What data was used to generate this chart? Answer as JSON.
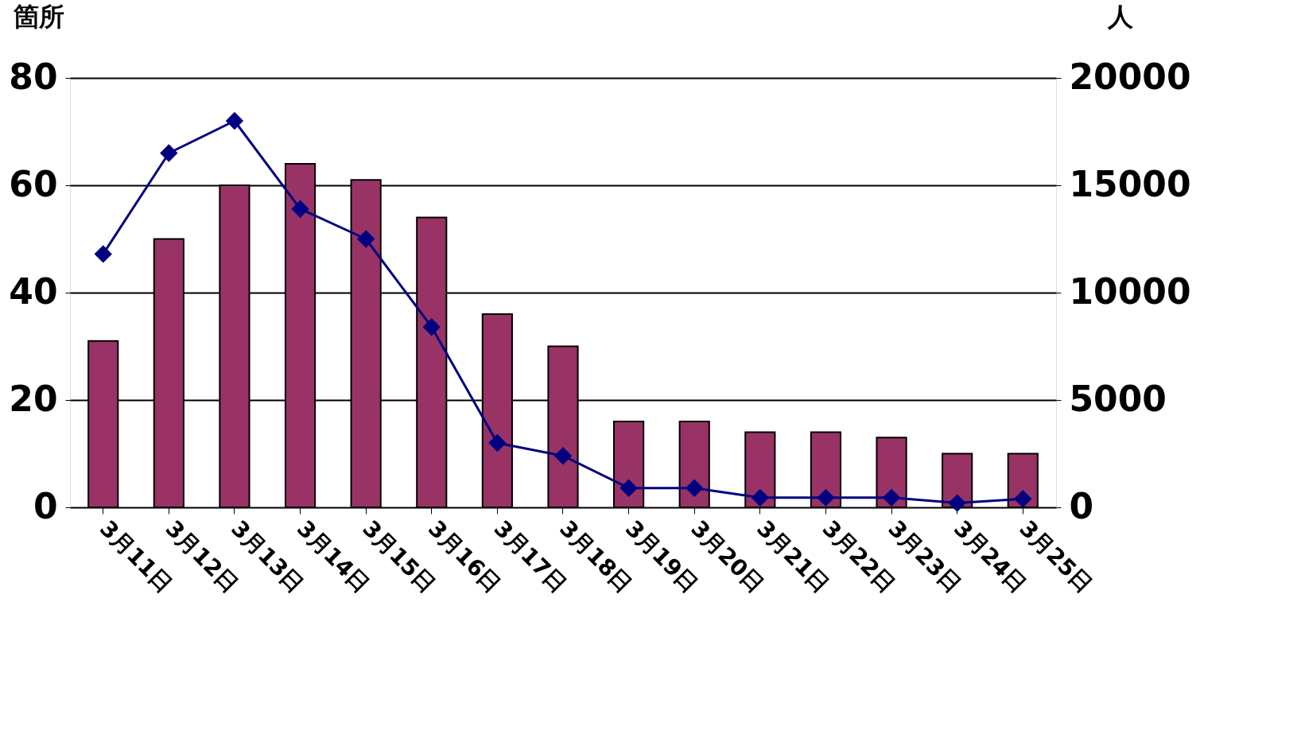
{
  "chart_data": {
    "type": "bar",
    "categories": [
      "3月11日",
      "3月12日",
      "3月13日",
      "3月14日",
      "3月15日",
      "3月16日",
      "3月17日",
      "3月18日",
      "3月19日",
      "3月20日",
      "3月21日",
      "3月22日",
      "3月23日",
      "3月24日",
      "3月25日"
    ],
    "ylabel": "箇所",
    "y2label": "人",
    "series": [
      {
        "type": "bar",
        "color": "#993366",
        "values": [
          31,
          50,
          60,
          64,
          61,
          54,
          36,
          30,
          16,
          16,
          14,
          14,
          13,
          10,
          10
        ]
      },
      {
        "type": "line",
        "axis": "y2",
        "color": "#000080",
        "marker": "diamond",
        "values": [
          11800,
          16500,
          18000,
          13900,
          12500,
          8400,
          3000,
          2400,
          900,
          900,
          450,
          450,
          450,
          200,
          400
        ]
      }
    ],
    "ylim": [
      0,
      80
    ],
    "yticks": [
      0,
      20,
      40,
      60,
      80
    ],
    "y2lim": [
      0,
      20000
    ],
    "y2ticks": [
      0,
      5000,
      10000,
      15000,
      20000
    ],
    "grid": "y",
    "legend": false
  }
}
